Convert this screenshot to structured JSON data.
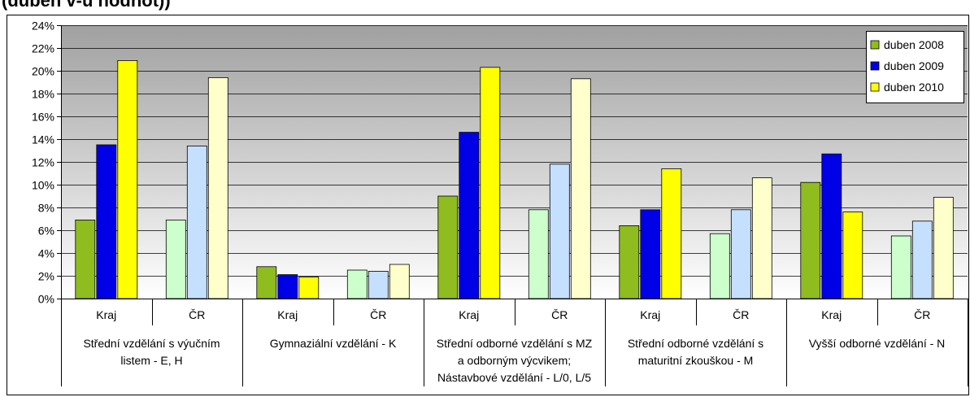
{
  "title_fragment": "(duben v-u hodnot))",
  "chart_data": {
    "type": "bar",
    "ylim": [
      0,
      24
    ],
    "yticks": [
      "0%",
      "2%",
      "4%",
      "6%",
      "8%",
      "10%",
      "12%",
      "14%",
      "16%",
      "18%",
      "20%",
      "22%",
      "24%"
    ],
    "grid": true,
    "legend_position": "top-right",
    "categories": [
      "Kraj",
      "ČR",
      "Kraj",
      "ČR",
      "Kraj",
      "ČR",
      "Kraj",
      "ČR",
      "Kraj",
      "ČR"
    ],
    "groups": [
      {
        "label": [
          "Střední vzdělání s výučním",
          "listem - E, H"
        ]
      },
      {
        "label": [
          "Gymnaziální vzdělání - K"
        ]
      },
      {
        "label": [
          "Střední odborné vzdělání s MZ",
          "a odborným výcvikem;",
          "Nástavbové vzdělání - L/0, L/5"
        ]
      },
      {
        "label": [
          "Střední odborné vzdělání s",
          "maturitní zkouškou - M"
        ]
      },
      {
        "label": [
          "Vyšší odborné vzdělání - N"
        ]
      }
    ],
    "series": [
      {
        "name": "duben 2008",
        "values": [
          6.9,
          6.9,
          2.8,
          2.5,
          9.0,
          7.8,
          6.4,
          5.7,
          10.2,
          5.5
        ]
      },
      {
        "name": "duben 2009",
        "values": [
          13.5,
          13.4,
          2.1,
          2.4,
          14.6,
          11.8,
          7.8,
          7.8,
          12.7,
          6.8
        ]
      },
      {
        "name": "duben 2010",
        "values": [
          20.9,
          19.4,
          1.9,
          3.0,
          20.3,
          19.3,
          11.4,
          10.6,
          7.6,
          8.9
        ]
      }
    ],
    "colors": {
      "kraj": [
        "#8fbc1f",
        "#0000e6",
        "#ffff00"
      ],
      "cr": [
        "#ccffcc",
        "#c5e0ff",
        "#ffffcc"
      ]
    }
  }
}
